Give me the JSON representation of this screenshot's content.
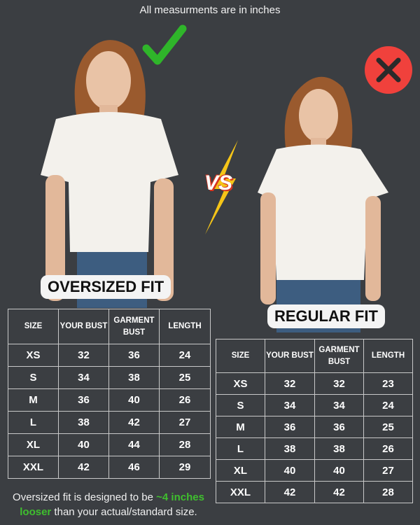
{
  "top_note": "All measurments are in inches",
  "vs_label": "VS",
  "icons": {
    "good": "check-icon",
    "bad": "cross-icon",
    "good_color": "#2fb52a",
    "bad_color": "#f0413c"
  },
  "oversized": {
    "label": "OVERSIZED FIT",
    "headers": [
      "SIZE",
      "YOUR BUST",
      "GARMENT BUST",
      "LENGTH"
    ],
    "rows": [
      [
        "XS",
        "32",
        "36",
        "24"
      ],
      [
        "S",
        "34",
        "38",
        "25"
      ],
      [
        "M",
        "36",
        "40",
        "26"
      ],
      [
        "L",
        "38",
        "42",
        "27"
      ],
      [
        "XL",
        "40",
        "44",
        "28"
      ],
      [
        "XXL",
        "42",
        "46",
        "29"
      ]
    ]
  },
  "regular": {
    "label": "REGULAR FIT",
    "headers": [
      "SIZE",
      "YOUR BUST",
      "GARMENT BUST",
      "LENGTH"
    ],
    "rows": [
      [
        "XS",
        "32",
        "32",
        "23"
      ],
      [
        "S",
        "34",
        "34",
        "24"
      ],
      [
        "M",
        "36",
        "36",
        "25"
      ],
      [
        "L",
        "38",
        "38",
        "26"
      ],
      [
        "XL",
        "40",
        "40",
        "27"
      ],
      [
        "XXL",
        "42",
        "42",
        "28"
      ]
    ]
  },
  "footnote": {
    "pre": "Oversized fit is designed to be ",
    "highlight": "~4 inches looser",
    "post": " than your actual/standard size."
  }
}
